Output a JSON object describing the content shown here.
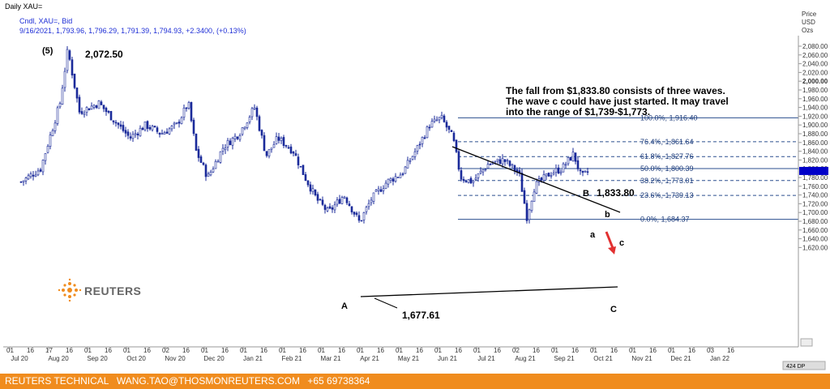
{
  "header": {
    "title": "Daily XAU=",
    "instrument": "Cndl, XAU=, Bid",
    "quote": "9/16/2021, 1,793.96, 1,796.29, 1,791.39, 1,794.93, +2.3400, (+0.13%)"
  },
  "axis_header": [
    "Price",
    "USD",
    "Ozs"
  ],
  "footer": {
    "brand": "REUTERS TECHNICAL",
    "email": "WANG.TAO@THOSMONREUTERS.COM",
    "phone": "+65 69738364"
  },
  "logo": {
    "text": "REUTERS"
  },
  "annotation": {
    "lines": [
      "The fall from $1,833.80 consists of three waves.",
      "The wave c could have just started. It may travel",
      "into the range of $1,739-$1,773."
    ]
  },
  "labels": {
    "wave5": "(5)",
    "peak_price": "2,072.50",
    "waveA": "A",
    "low_price": "1,677.61",
    "waveB": "B",
    "b_price": "1,833.80",
    "wave_b": "b",
    "wave_a": "a",
    "wave_c_small": "c",
    "waveC": "C"
  },
  "scroll_info": "424 DP",
  "chart_data": {
    "type": "candlestick",
    "title": "Daily XAU=",
    "ylabel": "Price USD Ozs",
    "ylim": [
      1600,
      2100
    ],
    "y_ticks": [
      1620,
      1640,
      1660,
      1680,
      1700,
      1720,
      1740,
      1760,
      1780,
      1800,
      1820,
      1840,
      1860,
      1880,
      1900,
      1920,
      1940,
      1960,
      1980,
      2000,
      2020,
      2040,
      2060,
      2080
    ],
    "y_tick_labels": [
      "1,620.00",
      "1,640.00",
      "1,660.00",
      "1,680.00",
      "1,700.00",
      "1,720.00",
      "1,740.00",
      "1,760.00",
      "1,780.00",
      "1,800.00",
      "1,820.00",
      "1,840.00",
      "1,860.00",
      "1,880.00",
      "1,900.00",
      "1,920.00",
      "1,940.00",
      "1,960.00",
      "1,980.00",
      "2,000.00",
      "2,020.00",
      "2,040.00",
      "2,060.00",
      "2,080.00"
    ],
    "current_price": 1794.93,
    "x_months": [
      {
        "day": "01",
        "label": "Jul 20"
      },
      {
        "day": "17",
        "label": "Aug 20"
      },
      {
        "day": "01",
        "label": "Sep 20"
      },
      {
        "day": "01",
        "label": "Oct 20"
      },
      {
        "day": "02",
        "label": "Nov 20"
      },
      {
        "day": "01",
        "label": "Dec 20"
      },
      {
        "day": "01",
        "label": "Jan 21"
      },
      {
        "day": "01",
        "label": "Feb 21"
      },
      {
        "day": "01",
        "label": "Mar 21"
      },
      {
        "day": "01",
        "label": "Apr 21"
      },
      {
        "day": "01",
        "label": "May 21"
      },
      {
        "day": "01",
        "label": "Jun 21"
      },
      {
        "day": "01",
        "label": "Jul 21"
      },
      {
        "day": "02",
        "label": "Aug 21"
      },
      {
        "day": "01",
        "label": "Sep 21"
      },
      {
        "day": "01",
        "label": "Oct 21"
      },
      {
        "day": "01",
        "label": "Nov 21"
      },
      {
        "day": "01",
        "label": "Dec 21"
      },
      {
        "day": "03",
        "label": "Jan 22"
      }
    ],
    "fibonacci": [
      {
        "pct": "100.0%",
        "price": 1916.4,
        "price_label": "1,916.40"
      },
      {
        "pct": "76.4%",
        "price": 1861.64,
        "price_label": "1,861.64"
      },
      {
        "pct": "61.8%",
        "price": 1827.76,
        "price_label": "1,827.76"
      },
      {
        "pct": "50.0%",
        "price": 1800.39,
        "price_label": "1,800.39"
      },
      {
        "pct": "38.2%",
        "price": 1773.01,
        "price_label": "1,773.01"
      },
      {
        "pct": "23.6%",
        "price": 1739.13,
        "price_label": "1,739.13"
      },
      {
        "pct": "0.0%",
        "price": 1684.37,
        "price_label": "1,684.37"
      }
    ],
    "price_path": [
      {
        "month": 0,
        "price": 1770
      },
      {
        "month": 0.5,
        "price": 1800
      },
      {
        "month": 1.0,
        "price": 1950
      },
      {
        "month": 1.2,
        "price": 2072.5
      },
      {
        "month": 1.5,
        "price": 1930
      },
      {
        "month": 2.0,
        "price": 1950
      },
      {
        "month": 2.4,
        "price": 1910
      },
      {
        "month": 2.8,
        "price": 1870
      },
      {
        "month": 3.2,
        "price": 1900
      },
      {
        "month": 3.6,
        "price": 1880
      },
      {
        "month": 4.0,
        "price": 1900
      },
      {
        "month": 4.3,
        "price": 1950
      },
      {
        "month": 4.5,
        "price": 1840
      },
      {
        "month": 4.8,
        "price": 1780
      },
      {
        "month": 5.2,
        "price": 1850
      },
      {
        "month": 5.6,
        "price": 1880
      },
      {
        "month": 6.0,
        "price": 1940
      },
      {
        "month": 6.3,
        "price": 1830
      },
      {
        "month": 6.6,
        "price": 1870
      },
      {
        "month": 7.0,
        "price": 1840
      },
      {
        "month": 7.3,
        "price": 1780
      },
      {
        "month": 7.6,
        "price": 1730
      },
      {
        "month": 7.9,
        "price": 1700
      },
      {
        "month": 8.3,
        "price": 1740
      },
      {
        "month": 8.7,
        "price": 1677.61
      },
      {
        "month": 9.0,
        "price": 1730
      },
      {
        "month": 9.4,
        "price": 1770
      },
      {
        "month": 9.8,
        "price": 1790
      },
      {
        "month": 10.2,
        "price": 1850
      },
      {
        "month": 10.5,
        "price": 1900
      },
      {
        "month": 10.8,
        "price": 1916.4
      },
      {
        "month": 11.1,
        "price": 1870
      },
      {
        "month": 11.3,
        "price": 1780
      },
      {
        "month": 11.6,
        "price": 1770
      },
      {
        "month": 12.0,
        "price": 1810
      },
      {
        "month": 12.4,
        "price": 1820
      },
      {
        "month": 12.8,
        "price": 1790
      },
      {
        "month": 13.0,
        "price": 1690
      },
      {
        "month": 13.2,
        "price": 1760
      },
      {
        "month": 13.6,
        "price": 1790
      },
      {
        "month": 13.9,
        "price": 1800
      },
      {
        "month": 14.2,
        "price": 1833.8
      },
      {
        "month": 14.4,
        "price": 1780
      },
      {
        "month": 14.6,
        "price": 1794.93
      }
    ]
  }
}
